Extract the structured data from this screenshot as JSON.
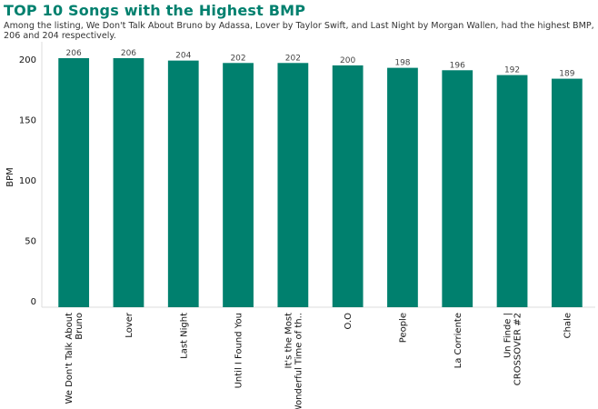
{
  "title": "TOP 10 Songs with the Highest BMP",
  "subtitle": "Among the listing,  We Don't Talk About Bruno by Adassa, Lover by Taylor Swift, and Last Night by Morgan Wallen, had the highest BMP, 206 and 204 respectively.",
  "colors": {
    "bar": "#00806e",
    "title": "#00806e"
  },
  "chart_data": {
    "type": "bar",
    "title": "TOP 10 Songs with the Highest BMP",
    "ylabel": "BPM",
    "xlabel": "",
    "ylim": [
      0,
      215
    ],
    "yticks": [
      0,
      50,
      100,
      150,
      200
    ],
    "grid": false,
    "categories": [
      [
        "We Don't Talk About",
        "Bruno"
      ],
      [
        "Lover"
      ],
      [
        "Last Night"
      ],
      [
        "Until I Found You"
      ],
      [
        "It's the Most",
        "Wonderful Time of th.."
      ],
      [
        "O.O"
      ],
      [
        "People"
      ],
      [
        "La Corriente"
      ],
      [
        "Un Finde |",
        "CROSSOVER #2"
      ],
      [
        "Chale"
      ]
    ],
    "values": [
      206,
      206,
      204,
      202,
      202,
      200,
      198,
      196,
      192,
      189
    ]
  }
}
